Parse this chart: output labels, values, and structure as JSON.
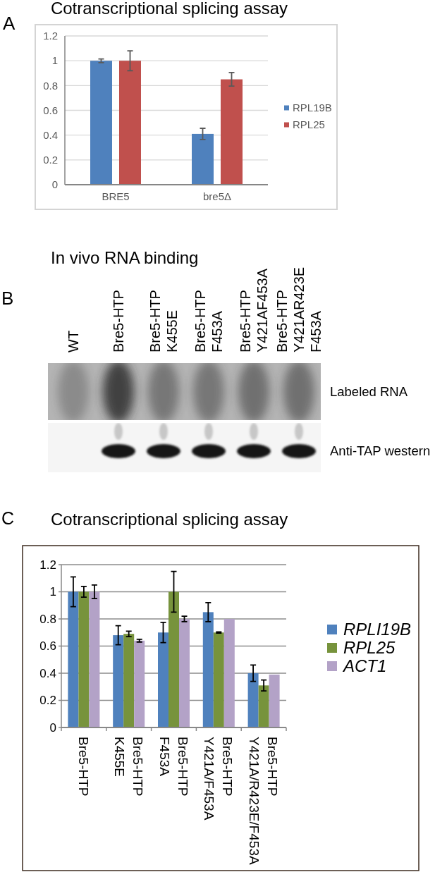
{
  "chart_data": [
    {
      "type": "bar",
      "title": "Cotranscriptional splicing assay",
      "categories": [
        "BRE5",
        "bre5Δ"
      ],
      "series": [
        {
          "name": "RPL19B",
          "color": "#4f81bd",
          "values": [
            1.0,
            0.41
          ],
          "errors": [
            0.015,
            0.045
          ]
        },
        {
          "name": "RPL25",
          "color": "#c0504d",
          "values": [
            1.0,
            0.85
          ],
          "errors": [
            0.08,
            0.055
          ]
        }
      ],
      "ylim": [
        0,
        1.2
      ],
      "yticks": [
        0,
        0.2,
        0.4,
        0.6,
        0.8,
        1,
        1.2
      ],
      "grid": "y",
      "legend": "right",
      "annotations": [
        "A"
      ]
    },
    {
      "type": "other",
      "title": "In vivo RNA binding",
      "categories": [
        "WT",
        "Bre5-HTP",
        "Bre5-HTP\nK455E",
        "Bre5-HTP\nF453A",
        "Bre5-HTP\nY421AF453A",
        "Bre5-HTP\nY421AR423E\nF453A"
      ],
      "y_categories": [
        "Labeled RNA",
        "Anti-TAP western"
      ],
      "annotations": [
        "B"
      ]
    },
    {
      "type": "bar",
      "title": "Cotranscriptional splicing assay",
      "categories": [
        "Bre5-HTP",
        "Bre5-HTP\nK455E",
        "Bre5-HTP\nF453A",
        "Bre5-HTP\nY421A/F453A",
        "Bre5-HTP\nY421A/R423E/F453A"
      ],
      "series": [
        {
          "name": "RPLI19B",
          "color": "#4f81bd",
          "values": [
            1.0,
            0.68,
            0.7,
            0.85,
            0.4
          ],
          "errors": [
            0.11,
            0.07,
            0.075,
            0.07,
            0.06
          ]
        },
        {
          "name": "RPL25",
          "color": "#77933c",
          "values": [
            1.0,
            0.69,
            1.0,
            0.7,
            0.31
          ],
          "errors": [
            0.04,
            0.02,
            0.15,
            0.005,
            0.04
          ]
        },
        {
          "name": "ACT1",
          "color": "#b3a2c7",
          "values": [
            1.0,
            0.64,
            0.8,
            0.8,
            0.39
          ],
          "errors": [
            0.05,
            0.01,
            0.02,
            null,
            null
          ]
        }
      ],
      "ylim": [
        0,
        1.2
      ],
      "yticks": [
        0,
        0.2,
        0.4,
        0.6,
        0.8,
        1,
        1.2
      ],
      "grid": "y",
      "legend": "right",
      "annotations": [
        "C"
      ]
    }
  ]
}
